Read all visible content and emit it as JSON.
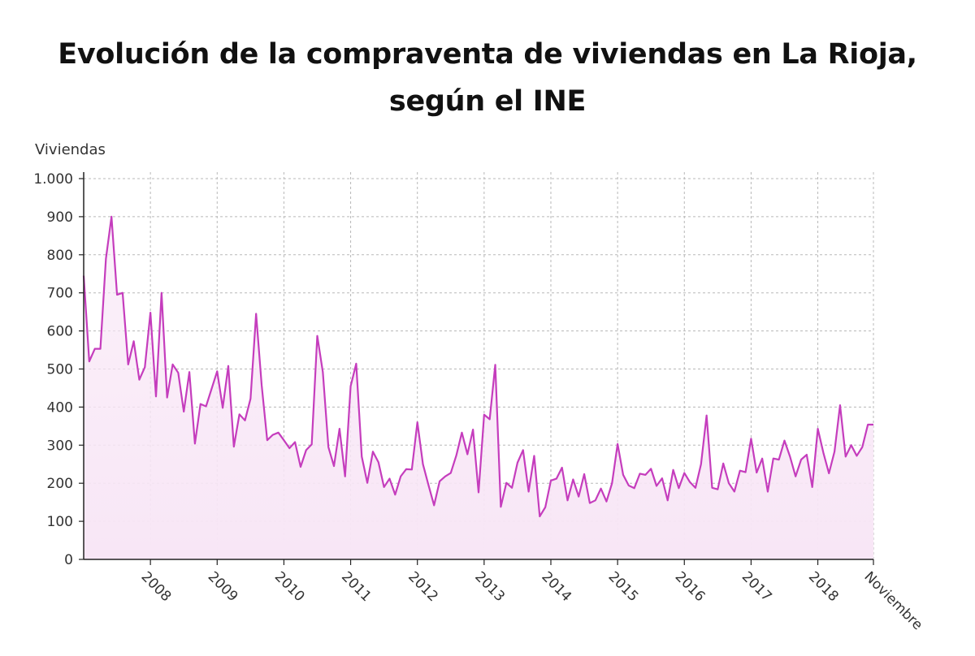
{
  "chart_data": {
    "type": "area",
    "title_lines": [
      "Evolución de la compraventa de viviendas en La Rioja,",
      "según el INE"
    ],
    "ylabel": "Viviendas",
    "ylim": [
      0,
      1000
    ],
    "yticks": [
      {
        "value": 0,
        "label": "0"
      },
      {
        "value": 100,
        "label": "100"
      },
      {
        "value": 200,
        "label": "200"
      },
      {
        "value": 300,
        "label": "300"
      },
      {
        "value": 400,
        "label": "400"
      },
      {
        "value": 500,
        "label": "500"
      },
      {
        "value": 600,
        "label": "600"
      },
      {
        "value": 700,
        "label": "700"
      },
      {
        "value": 800,
        "label": "800"
      },
      {
        "value": 900,
        "label": "900"
      },
      {
        "value": 1000,
        "label": "1.000"
      }
    ],
    "x_start": "2007-01",
    "x_end": "2018-11",
    "xticks": [
      {
        "month_index": 12,
        "label": "2008"
      },
      {
        "month_index": 24,
        "label": "2009"
      },
      {
        "month_index": 36,
        "label": "2010"
      },
      {
        "month_index": 48,
        "label": "2011"
      },
      {
        "month_index": 60,
        "label": "2012"
      },
      {
        "month_index": 72,
        "label": "2013"
      },
      {
        "month_index": 84,
        "label": "2014"
      },
      {
        "month_index": 96,
        "label": "2015"
      },
      {
        "month_index": 108,
        "label": "2016"
      },
      {
        "month_index": 120,
        "label": "2017"
      },
      {
        "month_index": 132,
        "label": "2018"
      },
      {
        "month_index": 142,
        "label": "Noviembre"
      }
    ],
    "grid": true,
    "line_color": "#c53dbd",
    "fill_color": "#f8e6f6",
    "series": [
      {
        "name": "Viviendas",
        "values": [
          745,
          520,
          553,
          553,
          790,
          900,
          695,
          700,
          512,
          573,
          472,
          505,
          648,
          428,
          700,
          425,
          512,
          490,
          388,
          492,
          304,
          408,
          402,
          448,
          494,
          398,
          508,
          296,
          381,
          365,
          422,
          645,
          458,
          313,
          327,
          333,
          313,
          292,
          308,
          243,
          287,
          302,
          587,
          492,
          295,
          245,
          343,
          218,
          455,
          514,
          270,
          201,
          283,
          255,
          190,
          212,
          170,
          218,
          237,
          236,
          360,
          250,
          195,
          142,
          205,
          218,
          227,
          273,
          333,
          276,
          341,
          176,
          380,
          368,
          511,
          138,
          201,
          188,
          254,
          287,
          178,
          272,
          113,
          137,
          207,
          212,
          241,
          155,
          210,
          165,
          224,
          148,
          155,
          186,
          152,
          200,
          303,
          222,
          194,
          187,
          225,
          222,
          238,
          193,
          213,
          155,
          235,
          187,
          227,
          203,
          188,
          250,
          378,
          188,
          184,
          252,
          200,
          178,
          233,
          229,
          317,
          228,
          265,
          178,
          265,
          262,
          312,
          270,
          218,
          262,
          275,
          190,
          343,
          280,
          226,
          283,
          405,
          270,
          300,
          272,
          295,
          354,
          354
        ]
      }
    ]
  }
}
